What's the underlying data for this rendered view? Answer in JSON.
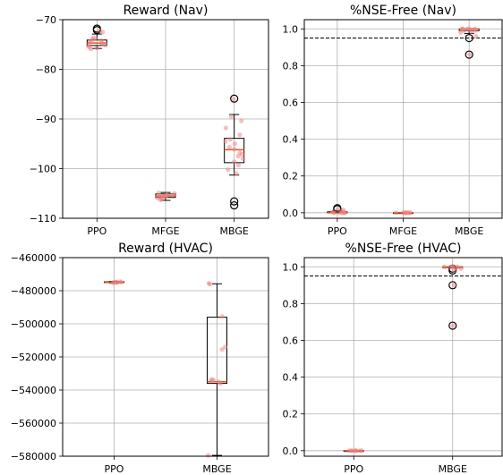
{
  "chart_data": [
    {
      "type": "box",
      "title": "Reward (Nav)",
      "categories": [
        "PPO",
        "MFGE",
        "MBGE"
      ],
      "yticks": [
        "−70",
        "−80",
        "−90",
        "−100",
        "−110"
      ],
      "ylim": [
        -110,
        -70
      ],
      "grid": true,
      "boxes": [
        {
          "q1": -75.2,
          "median": -74.7,
          "q3": -74.1,
          "whislo": -75.8,
          "whishi": -72.9,
          "fliers": [
            -72.1,
            -71.8
          ]
        },
        {
          "q1": -105.8,
          "median": -105.5,
          "q3": -105.1,
          "whislo": -106.4,
          "whishi": -104.8,
          "fliers": []
        },
        {
          "q1": -98.8,
          "median": -96.2,
          "q3": -93.9,
          "whislo": -101.3,
          "whishi": -89.1,
          "fliers": [
            -85.9,
            -106.6,
            -107.4
          ]
        }
      ],
      "points": [
        [
          -74.2,
          -75.5,
          -73.8,
          -74.9,
          -75.9,
          -72.5,
          -74.4,
          -75.1,
          -73.6,
          -74.7,
          -75.3,
          -74.0,
          -72.2,
          -75.7,
          -74.6
        ],
        [
          -105.2,
          -105.7,
          -106.1,
          -105.4,
          -104.9,
          -105.9,
          -105.3,
          -106.3,
          -105.6,
          -105.0,
          -105.8,
          -105.5
        ],
        [
          -86.0,
          -89.5,
          -90.4,
          -91.8,
          -93.2,
          -94.5,
          -95.0,
          -95.7,
          -96.1,
          -96.8,
          -97.5,
          -98.0,
          -98.6,
          -99.3,
          -100.2,
          -101.0,
          -97.1,
          -94.1
        ]
      ]
    },
    {
      "type": "box",
      "title": "%NSE-Free (Nav)",
      "categories": [
        "PPO",
        "MFGE",
        "MBGE"
      ],
      "yticks": [
        "0.0",
        "0.2",
        "0.4",
        "0.6",
        "0.8",
        "1.0"
      ],
      "ylim": [
        -0.03,
        1.05
      ],
      "grid": true,
      "reference_line": 0.95,
      "boxes": [
        {
          "q1": 0.0,
          "median": 0.0,
          "q3": 0.005,
          "whislo": 0.0,
          "whishi": 0.012,
          "fliers": [
            0.02,
            0.025
          ]
        },
        {
          "q1": 0.0,
          "median": 0.0,
          "q3": 0.0,
          "whislo": 0.0,
          "whishi": 0.0,
          "fliers": []
        },
        {
          "q1": 0.99,
          "median": 1.0,
          "q3": 1.0,
          "whislo": 0.975,
          "whishi": 1.0,
          "fliers": [
            0.95,
            0.86
          ]
        }
      ],
      "points": [
        [
          0.0,
          0.0,
          0.01,
          0.0,
          0.02,
          0.0,
          0.0,
          0.005,
          0.0,
          0.015,
          0.0
        ],
        [
          0.0,
          0.0,
          0.0,
          0.0,
          0.0,
          0.0,
          0.0,
          0.0,
          0.0
        ],
        [
          1.0,
          0.99,
          1.0,
          0.98,
          1.0,
          0.96,
          0.86,
          1.0,
          0.99,
          1.0,
          0.985
        ]
      ]
    },
    {
      "type": "box",
      "title": "Reward (HVAC)",
      "categories": [
        "PPO",
        "MBGE"
      ],
      "yticks": [
        "−460000",
        "−480000",
        "−500000",
        "−520000",
        "−540000",
        "−560000",
        "−580000"
      ],
      "ylim": [
        -580000,
        -460000
      ],
      "grid": true,
      "boxes": [
        {
          "q1": -475100,
          "median": -474900,
          "q3": -474600,
          "whislo": -475300,
          "whishi": -474400,
          "fliers": []
        },
        {
          "q1": -536000,
          "median": -535000,
          "q3": -496000,
          "whislo": -579500,
          "whishi": -475800,
          "fliers": []
        }
      ],
      "points": [
        [
          -474500,
          -474800,
          -475000,
          -475200,
          -474700,
          -474900,
          -475100
        ],
        [
          -475500,
          -476000,
          -495500,
          -514000,
          -515500,
          -533500,
          -534500,
          -535000,
          -536000,
          -534000,
          -579500
        ]
      ]
    },
    {
      "type": "box",
      "title": "%NSE-Free (HVAC)",
      "categories": [
        "PPO",
        "MBGE"
      ],
      "yticks": [
        "0.0",
        "0.2",
        "0.4",
        "0.6",
        "0.8",
        "1.0"
      ],
      "ylim": [
        -0.03,
        1.05
      ],
      "grid": true,
      "reference_line": 0.95,
      "boxes": [
        {
          "q1": 0.0,
          "median": 0.0,
          "q3": 0.0,
          "whislo": 0.0,
          "whishi": 0.0,
          "fliers": []
        },
        {
          "q1": 1.0,
          "median": 1.0,
          "q3": 1.0,
          "whislo": 1.0,
          "whishi": 1.0,
          "fliers": [
            0.99,
            0.98,
            0.9,
            0.68
          ]
        }
      ],
      "points": [
        [
          0.0,
          0.0,
          0.0,
          0.0,
          0.0,
          0.0,
          0.0,
          0.0
        ],
        [
          1.0,
          1.0,
          1.0,
          0.99,
          0.98,
          0.9,
          0.68,
          1.0,
          1.0,
          0.995
        ]
      ]
    }
  ],
  "colors": {
    "point": "#f08080",
    "median": "#e8541a",
    "grid": "#b0b0b0",
    "axis": "#000000",
    "reference_line": "#000000"
  }
}
